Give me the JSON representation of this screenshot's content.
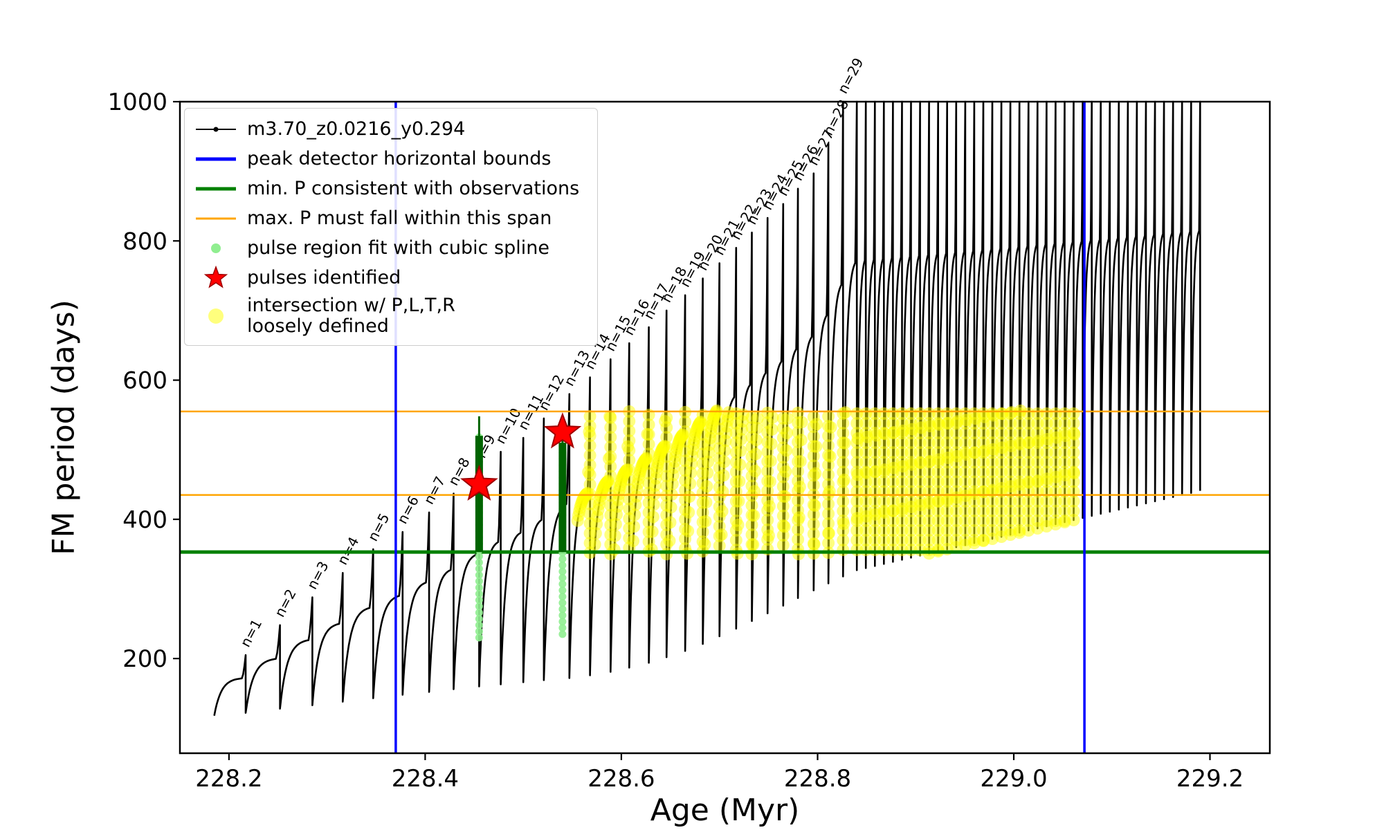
{
  "chart_data": {
    "type": "line",
    "title": "",
    "xlabel": "Age (Myr)",
    "ylabel": "FM period (days)",
    "xlim": [
      228.15,
      229.261
    ],
    "ylim": [
      64,
      1000
    ],
    "xticks": [
      228.2,
      228.4,
      228.6,
      228.8,
      229.0,
      229.2
    ],
    "xtick_labels": [
      "228.2",
      "228.4",
      "228.6",
      "228.8",
      "229.0",
      "229.2"
    ],
    "yticks": [
      200,
      400,
      600,
      800,
      1000
    ],
    "ytick_labels": [
      "200",
      "400",
      "600",
      "800",
      "1000"
    ],
    "series_name": "m3.70_z0.0216_y0.294",
    "grid": false,
    "legend_position": "upper-left",
    "peak_detector_bounds_x": [
      228.37,
      229.072
    ],
    "min_P_line_y": 353,
    "max_P_span_y": [
      435,
      555
    ],
    "start": {
      "x": 228.185,
      "y": 118
    },
    "pulses": [
      [
        1,
        228.217,
        205,
        122
      ],
      [
        2,
        228.252,
        248,
        128
      ],
      [
        3,
        228.285,
        288,
        133
      ],
      [
        4,
        228.316,
        323,
        138
      ],
      [
        5,
        228.347,
        357,
        143
      ],
      [
        6,
        228.377,
        382,
        148
      ],
      [
        7,
        228.404,
        410,
        152
      ],
      [
        8,
        228.429,
        437,
        156
      ],
      [
        9,
        228.455,
        470,
        160
      ],
      [
        10,
        228.477,
        497,
        163
      ],
      [
        11,
        228.5,
        517,
        166
      ],
      [
        12,
        228.521,
        545,
        169
      ],
      [
        13,
        228.547,
        580,
        172
      ],
      [
        14,
        228.568,
        604,
        176
      ],
      [
        15,
        228.589,
        630,
        181
      ],
      [
        16,
        228.608,
        653,
        187
      ],
      [
        17,
        228.628,
        676,
        194
      ],
      [
        18,
        228.646,
        700,
        202
      ],
      [
        19,
        228.665,
        722,
        211
      ],
      [
        20,
        228.683,
        746,
        221
      ],
      [
        21,
        228.7,
        768,
        232
      ],
      [
        22,
        228.717,
        790,
        243
      ],
      [
        23,
        228.733,
        812,
        254
      ],
      [
        24,
        228.749,
        833,
        265
      ],
      [
        25,
        228.765,
        853,
        276
      ],
      [
        26,
        228.78,
        875,
        287
      ],
      [
        27,
        228.796,
        897,
        298
      ],
      [
        28,
        228.811,
        940,
        308
      ],
      [
        29,
        228.826,
        1005,
        318
      ]
    ],
    "pulse_label_prefix": "n=",
    "extra_pulses": {
      "x_start": 228.84,
      "x_end": 229.19,
      "count": 39,
      "spike": 1050,
      "trough_start": 327,
      "trough_end": 441
    },
    "red_stars": [
      [
        228.455,
        450
      ],
      [
        228.54,
        525
      ]
    ],
    "spline_regions": [
      {
        "x": 228.455,
        "y_light": [
          230,
          520
        ],
        "y_dark": [
          353,
          520
        ]
      },
      {
        "x": 228.54,
        "y_light": [
          235,
          510
        ],
        "y_dark": [
          353,
          510
        ]
      }
    ],
    "intersection_band": {
      "x_min": 228.555,
      "x_max": 229.065,
      "y_min": 350,
      "y_max": 557
    },
    "colors": {
      "curve": "#000000",
      "bounds": "#0000ff",
      "min_p": "#008000",
      "max_p": "#ffa500",
      "spline_fit": "#90ee90",
      "spline_dark": "#006400",
      "pulse_star": "#ff0000",
      "star_edge": "#a00000",
      "intersection": "#ffff00"
    }
  },
  "legend": {
    "entries": [
      {
        "symbol": "line-dot",
        "color": "#000000",
        "label": "m3.70_z0.0216_y0.294"
      },
      {
        "symbol": "thick-line",
        "color": "#0000ff",
        "label": "peak detector horizontal bounds"
      },
      {
        "symbol": "thick-line",
        "color": "#008000",
        "label": "min. P consistent with observations"
      },
      {
        "symbol": "line",
        "color": "#ffa500",
        "label": "max. P must fall within this span"
      },
      {
        "symbol": "dot",
        "color": "#90ee90",
        "label": "pulse region fit with cubic spline"
      },
      {
        "symbol": "star",
        "color": "#ff0000",
        "label": "pulses identified"
      },
      {
        "symbol": "big-dot",
        "color": "#ffff66",
        "label": "intersection w/ P,L,T,R\nloosely defined"
      }
    ]
  }
}
